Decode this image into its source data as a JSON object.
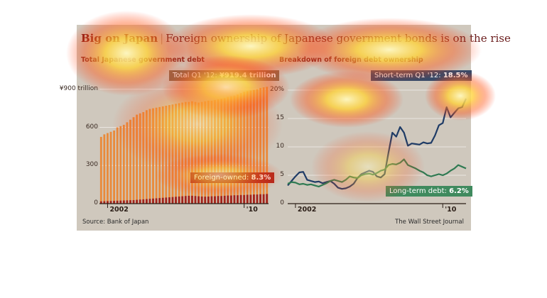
{
  "headline": {
    "brand": "Big on Japan",
    "separator": "|",
    "subtitle": "Foreign ownership of Japanese government bonds is on the rise"
  },
  "source": "Source: Bank of Japan",
  "credit": "The Wall Street Journal",
  "colors": {
    "total_bars": "#e98a3a",
    "foreign_bars": "#a3231b",
    "short_term_line": "#1e3b66",
    "long_term_line": "#2f7a52",
    "background": "#cfc8bd"
  },
  "chart_data": [
    {
      "type": "bar",
      "title": "Total Japanese government debt",
      "ylim": [
        0,
        960
      ],
      "yticks": [
        {
          "value": 0,
          "label": "0"
        },
        {
          "value": 300,
          "label": "300"
        },
        {
          "value": 600,
          "label": "600"
        },
        {
          "value": 900,
          "label": "¥900 trillion"
        }
      ],
      "xticks": [
        {
          "index": 2,
          "label": "2002"
        },
        {
          "index": 44,
          "label": "'10"
        }
      ],
      "grid": true,
      "series": [
        {
          "values": [
            525,
            545,
            555,
            565,
            575,
            600,
            610,
            620,
            640,
            660,
            680,
            700,
            710,
            720,
            735,
            745,
            750,
            755,
            760,
            765,
            770,
            775,
            780,
            785,
            790,
            795,
            800,
            800,
            805,
            800,
            795,
            800,
            805,
            810,
            810,
            815,
            820,
            825,
            830,
            840,
            845,
            850,
            860,
            870,
            880,
            885,
            890,
            895,
            900,
            910,
            915,
            919
          ]
        },
        {
          "values": [
            18,
            19,
            20,
            21,
            22,
            23,
            24,
            25,
            26,
            27,
            28,
            30,
            32,
            34,
            36,
            38,
            40,
            42,
            44,
            46,
            48,
            50,
            52,
            54,
            56,
            58,
            60,
            62,
            62,
            60,
            58,
            56,
            55,
            56,
            58,
            58,
            60,
            60,
            62,
            64,
            64,
            66,
            66,
            68,
            68,
            70,
            70,
            72,
            72,
            74,
            74,
            76
          ]
        }
      ],
      "annotations": [
        {
          "text": "Total Q1 '12: ",
          "value_text": "¥919.4 trillion"
        },
        {
          "text": "Foreign-owned: ",
          "value_text": "8.3%"
        }
      ]
    },
    {
      "type": "line",
      "title": "Breakdown of foreign debt ownership",
      "ylim": [
        0,
        20
      ],
      "yticks": [
        {
          "value": 0,
          "label": "0"
        },
        {
          "value": 5,
          "label": "5"
        },
        {
          "value": 10,
          "label": "10"
        },
        {
          "value": 15,
          "label": "15"
        },
        {
          "value": 20,
          "label": "20%"
        }
      ],
      "xticks": [
        {
          "index": 2,
          "label": "2002"
        },
        {
          "index": 40,
          "label": "'10"
        }
      ],
      "grid": true,
      "series": [
        {
          "values": [
            3.2,
            4.0,
            4.8,
            5.5,
            5.6,
            4.2,
            4.0,
            3.8,
            3.9,
            3.6,
            3.8,
            4.0,
            3.5,
            2.8,
            2.6,
            2.7,
            3.0,
            3.5,
            4.5,
            5.2,
            5.5,
            5.8,
            5.6,
            4.8,
            4.6,
            5.2,
            9.0,
            12.5,
            11.8,
            13.5,
            12.5,
            10.2,
            10.6,
            10.5,
            10.4,
            10.8,
            10.6,
            10.7,
            12.0,
            13.8,
            14.2,
            17.0,
            15.2,
            16.0,
            16.8,
            17.0,
            18.5
          ]
        },
        {
          "values": [
            3.5,
            3.8,
            3.7,
            3.4,
            3.5,
            3.3,
            3.4,
            3.2,
            3.0,
            3.3,
            3.6,
            4.0,
            4.2,
            4.0,
            3.8,
            4.2,
            4.8,
            4.6,
            4.5,
            5.0,
            5.2,
            5.3,
            5.1,
            5.4,
            5.8,
            6.0,
            6.8,
            7.0,
            6.9,
            7.2,
            7.8,
            6.8,
            6.5,
            6.2,
            5.8,
            5.5,
            5.0,
            4.8,
            5.0,
            5.2,
            5.0,
            5.3,
            5.8,
            6.2,
            6.8,
            6.5,
            6.2
          ]
        }
      ],
      "annotations": [
        {
          "text": "Short-term Q1 '12: ",
          "value_text": "18.5%"
        },
        {
          "text": "Long-term debt: ",
          "value_text": "6.2%"
        }
      ]
    }
  ]
}
